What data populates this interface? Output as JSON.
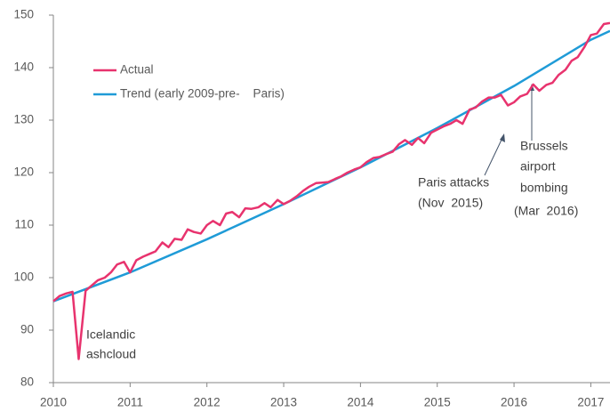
{
  "chart_data": {
    "type": "line",
    "xlim": [
      2010,
      2017.25
    ],
    "ylim": [
      80,
      150
    ],
    "xticks": [
      2010,
      2011,
      2012,
      2013,
      2014,
      2015,
      2016,
      2017
    ],
    "yticks": [
      80,
      90,
      100,
      110,
      120,
      130,
      140,
      150
    ],
    "legend": "upper left",
    "series": [
      {
        "name": "Actual",
        "color": "#e8336e",
        "x": [
          2010,
          2010.08,
          2010.17,
          2010.25,
          2010.33,
          2010.42,
          2010.5,
          2010.58,
          2010.67,
          2010.75,
          2010.83,
          2010.92,
          2011,
          2011.08,
          2011.17,
          2011.25,
          2011.33,
          2011.42,
          2011.5,
          2011.58,
          2011.67,
          2011.75,
          2011.83,
          2011.92,
          2012,
          2012.08,
          2012.17,
          2012.25,
          2012.33,
          2012.42,
          2012.5,
          2012.58,
          2012.67,
          2012.75,
          2012.83,
          2012.92,
          2013,
          2013.08,
          2013.17,
          2013.25,
          2013.33,
          2013.42,
          2013.5,
          2013.58,
          2013.67,
          2013.75,
          2013.83,
          2013.92,
          2014,
          2014.08,
          2014.17,
          2014.25,
          2014.33,
          2014.42,
          2014.5,
          2014.58,
          2014.67,
          2014.75,
          2014.83,
          2014.92,
          2015,
          2015.08,
          2015.17,
          2015.25,
          2015.33,
          2015.42,
          2015.5,
          2015.58,
          2015.67,
          2015.75,
          2015.83,
          2015.92,
          2016,
          2016.08,
          2016.17,
          2016.25,
          2016.33,
          2016.42,
          2016.5,
          2016.58,
          2016.67,
          2016.75,
          2016.83,
          2016.92,
          2017,
          2017.08,
          2017.17,
          2017.25
        ],
        "values": [
          95.5,
          96.5,
          97,
          97.3,
          84.5,
          97.5,
          98.5,
          99.5,
          100,
          101,
          102.5,
          103,
          101,
          103.3,
          104,
          104.5,
          105,
          106.7,
          105.8,
          107.4,
          107.2,
          109.2,
          108.7,
          108.4,
          110,
          110.8,
          110,
          112.2,
          112.5,
          111.5,
          113.2,
          113.1,
          113.4,
          114.2,
          113.4,
          114.8,
          114,
          114.6,
          115.5,
          116.5,
          117.3,
          118,
          118.1,
          118.2,
          118.8,
          119.3,
          120,
          120.6,
          121,
          122,
          122.8,
          123,
          123.5,
          124,
          125.4,
          126.2,
          125.3,
          126.6,
          125.6,
          127.6,
          128.2,
          128.8,
          129.3,
          130,
          129.3,
          132,
          132.4,
          133.5,
          134.3,
          134.3,
          134.8,
          132.8,
          133.4,
          134.5,
          135,
          136.8,
          135.6,
          136.7,
          137.1,
          138.6,
          139.6,
          141.3,
          142,
          144,
          146.2,
          146.5,
          148.3,
          148.5
        ]
      },
      {
        "name": "Trend (early 2009-pre-    Paris)",
        "color": "#1f9bd7",
        "x": [
          2010,
          2011,
          2012,
          2013,
          2014,
          2015,
          2016,
          2017,
          2017.25
        ],
        "values": [
          95.5,
          101,
          107.3,
          114,
          121,
          128.5,
          136.5,
          145.3,
          147
        ]
      }
    ],
    "annotations": [
      {
        "lines": [
          "Icelandic",
          "ashcloud"
        ]
      },
      {
        "lines": [
          "Paris attacks",
          "(Nov  2015)"
        ]
      },
      {
        "lines": [
          "Brussels",
          "airport",
          "bombing",
          "(Mar  2016)"
        ]
      }
    ]
  }
}
